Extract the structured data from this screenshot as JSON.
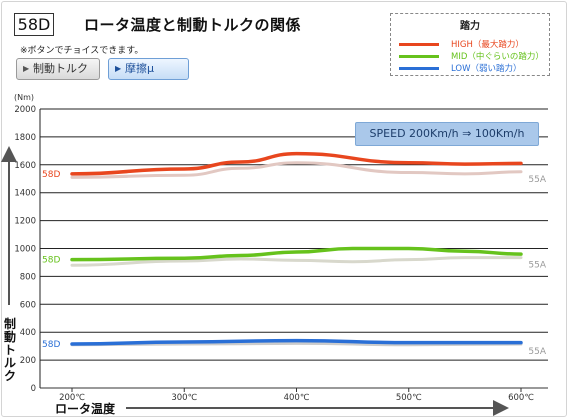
{
  "header": {
    "badge": "58D",
    "title": "ロータ温度と制動トルクの関係",
    "note": "※ボタンでチョイスできます。"
  },
  "buttons": [
    {
      "label": "制動トルク",
      "selected": false
    },
    {
      "label": "摩擦μ",
      "selected": false
    }
  ],
  "legend": {
    "title": "踏力",
    "items": [
      {
        "label": "HIGH（最大踏力）",
        "color": "#e8461e"
      },
      {
        "label": "MID（中ぐらいの踏力）",
        "color": "#66c21c"
      },
      {
        "label": "LOW（弱い踏力）",
        "color": "#2a6fd6"
      }
    ]
  },
  "speed_label": "SPEED  200Km/h ⇒ 100Km/h",
  "axes": {
    "y_unit": "(Nm)",
    "y_title": "制動トルク",
    "x_title": "ロータ温度"
  },
  "chart_data": {
    "type": "line",
    "x": [
      "200℃",
      "300℃",
      "400℃",
      "500℃",
      "600℃"
    ],
    "ylim": [
      0,
      2000
    ],
    "yticks": [
      0,
      200,
      400,
      600,
      800,
      1000,
      1200,
      1400,
      1600,
      1800,
      2000
    ],
    "series_labels": {
      "primary": "58D",
      "secondary": "55A"
    },
    "series": [
      {
        "group": "HIGH",
        "compound": "58D",
        "color": "#e8461e",
        "x": [
          200,
          300,
          350,
          400,
          500,
          550,
          600
        ],
        "values": [
          1535,
          1570,
          1620,
          1680,
          1615,
          1605,
          1610
        ]
      },
      {
        "group": "HIGH",
        "compound": "55A",
        "color": "#e2c8c2",
        "x": [
          200,
          300,
          350,
          400,
          500,
          550,
          600
        ],
        "values": [
          1510,
          1525,
          1575,
          1615,
          1545,
          1535,
          1550
        ]
      },
      {
        "group": "MID",
        "compound": "58D",
        "color": "#66c21c",
        "x": [
          200,
          300,
          350,
          400,
          450,
          500,
          550,
          600
        ],
        "values": [
          920,
          930,
          950,
          975,
          1000,
          1000,
          980,
          960
        ]
      },
      {
        "group": "MID",
        "compound": "55A",
        "color": "#d8d8cc",
        "x": [
          200,
          300,
          350,
          400,
          450,
          500,
          550,
          600
        ],
        "values": [
          880,
          910,
          925,
          915,
          905,
          920,
          935,
          935
        ]
      },
      {
        "group": "LOW",
        "compound": "58D",
        "color": "#2a6fd6",
        "x": [
          200,
          300,
          400,
          500,
          600
        ],
        "values": [
          315,
          330,
          340,
          325,
          325
        ]
      },
      {
        "group": "LOW",
        "compound": "55A",
        "color": "#cccccc",
        "x": [
          200,
          300,
          400,
          500,
          600
        ],
        "values": [
          310,
          315,
          320,
          310,
          315
        ]
      }
    ]
  }
}
